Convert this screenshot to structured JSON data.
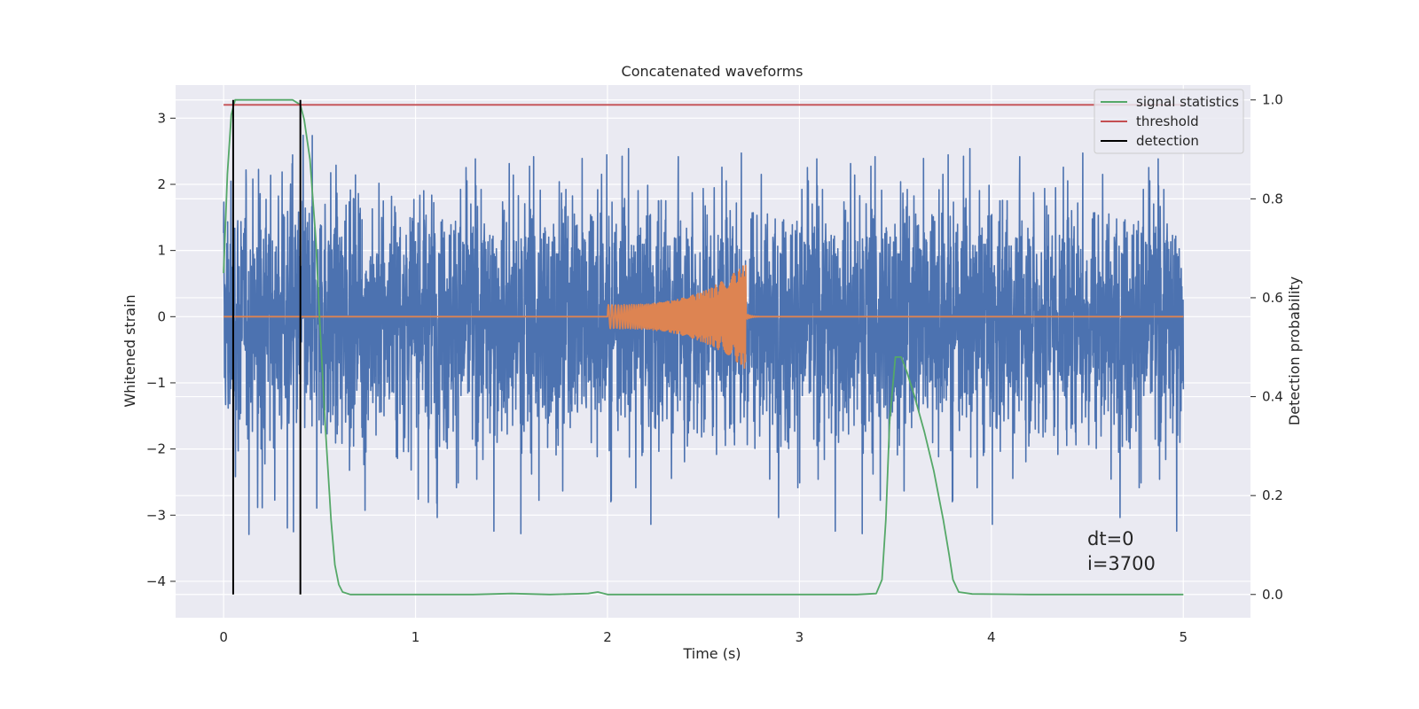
{
  "chart_data": {
    "type": "line",
    "title": "Concatenated waveforms",
    "xlabel": "Time (s)",
    "ylabel": "Whitened strain",
    "y2label": "Detection probability",
    "xlim": [
      -0.25,
      5.35
    ],
    "ylim": [
      -4.55,
      3.5
    ],
    "y2lim": [
      -0.047,
      1.03
    ],
    "xticks": [
      0,
      1,
      2,
      3,
      4,
      5
    ],
    "yticks": [
      -4,
      -3,
      -2,
      -1,
      0,
      1,
      2,
      3
    ],
    "y2ticks": [
      0.0,
      0.2,
      0.4,
      0.6,
      0.8,
      1.0
    ],
    "xtick_labels": [
      "0",
      "1",
      "2",
      "3",
      "4",
      "5"
    ],
    "ytick_labels": [
      "−4",
      "−3",
      "−2",
      "−1",
      "0",
      "1",
      "2",
      "3"
    ],
    "y2tick_labels": [
      "0.0",
      "0.2",
      "0.4",
      "0.6",
      "0.8",
      "1.0"
    ],
    "grid": true,
    "legend_position": "top-right",
    "legend": [
      {
        "label": "signal statistics",
        "color": "#55a868"
      },
      {
        "label": "threshold",
        "color": "#c44e52"
      },
      {
        "label": "detection",
        "color": "#000000"
      }
    ],
    "series": [
      {
        "name": "strain",
        "axis": "left",
        "color": "#4c72b0",
        "kind": "noise",
        "x_range": [
          0,
          5
        ],
        "envelope": [
          -3.3,
          3.1
        ]
      },
      {
        "name": "waveform",
        "axis": "left",
        "color": "#dd8452",
        "kind": "chirp",
        "x_range": [
          0,
          5
        ],
        "chirp_range": [
          2.0,
          2.72
        ],
        "chirp_amplitude_start": 0.18,
        "chirp_amplitude_peak": 0.8
      },
      {
        "name": "signal statistics",
        "axis": "right",
        "color": "#55a868",
        "x": [
          0.0,
          0.02,
          0.04,
          0.06,
          0.08,
          0.1,
          0.2,
          0.3,
          0.36,
          0.4,
          0.42,
          0.45,
          0.48,
          0.5,
          0.53,
          0.56,
          0.58,
          0.6,
          0.62,
          0.66,
          0.8,
          1.0,
          1.3,
          1.5,
          1.7,
          1.9,
          1.95,
          2.0,
          2.2,
          2.6,
          3.0,
          3.3,
          3.4,
          3.43,
          3.45,
          3.47,
          3.5,
          3.53,
          3.56,
          3.6,
          3.65,
          3.7,
          3.75,
          3.78,
          3.8,
          3.83,
          3.9,
          4.2,
          4.6,
          5.0
        ],
        "y": [
          0.65,
          0.85,
          0.97,
          1.0,
          1.0,
          1.0,
          1.0,
          1.0,
          1.0,
          0.99,
          0.96,
          0.88,
          0.72,
          0.56,
          0.34,
          0.15,
          0.06,
          0.02,
          0.005,
          0.0,
          0.0,
          0.0,
          0.0,
          0.002,
          0.0,
          0.002,
          0.005,
          0.0,
          0.0,
          0.0,
          0.0,
          0.0,
          0.002,
          0.03,
          0.15,
          0.35,
          0.48,
          0.48,
          0.45,
          0.4,
          0.33,
          0.25,
          0.15,
          0.08,
          0.03,
          0.005,
          0.001,
          0.0,
          0.0,
          0.0
        ]
      },
      {
        "name": "threshold",
        "axis": "right",
        "color": "#c44e52",
        "x": [
          0,
          5
        ],
        "y": [
          0.99,
          0.99
        ]
      }
    ],
    "detections": [
      0.05,
      0.4
    ],
    "detection_color": "#000000"
  },
  "annotation": {
    "line1": "dt=0",
    "line2": "i=3700"
  }
}
